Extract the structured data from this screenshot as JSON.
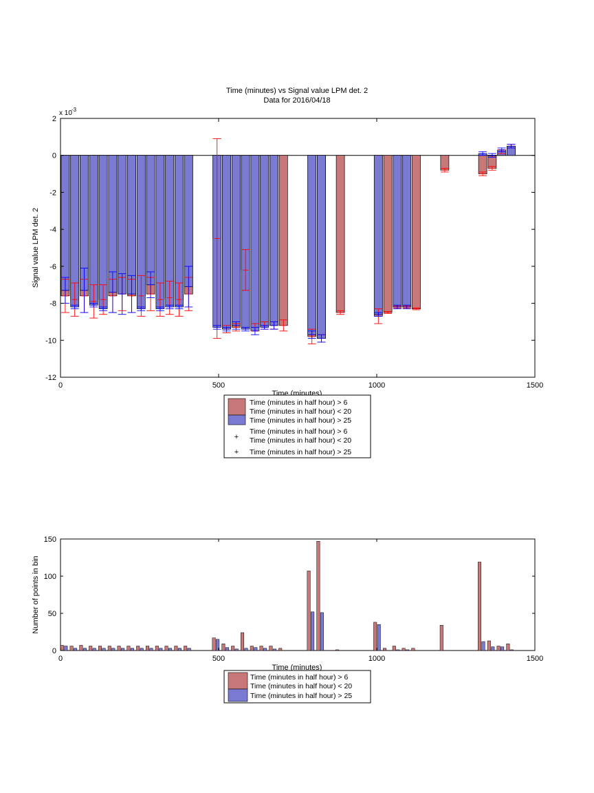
{
  "chart_data": [
    {
      "type": "bar",
      "title": "Time (minutes) vs Signal value LPM det. 2",
      "subtitle": "Data for 2016/04/18",
      "xlabel": "Time (minutes)",
      "ylabel": "Signal value LPM det. 2",
      "y_exponent_label": "x 10",
      "y_exponent": "-3",
      "xlim": [
        0,
        1500
      ],
      "ylim": [
        -12,
        2
      ],
      "xticks": [
        0,
        500,
        1000,
        1500
      ],
      "yticks": [
        -12,
        -10,
        -8,
        -6,
        -4,
        -2,
        0,
        2
      ],
      "legend_placement": "below",
      "legend": [
        "Time (minutes in half hour) > 6",
        "Time (minutes in half hour) < 20",
        "Time (minutes in half hour) > 25",
        "Time (minutes in half hour) > 6",
        "Time (minutes in half hour) < 20",
        "Time (minutes in half hour) > 25"
      ],
      "colors": {
        "red_bar": "#c87878",
        "blue_bar": "#7a7ad2",
        "red_err": "#ff0000",
        "blue_err": "#0000ff"
      },
      "series": [
        {
          "name": "Time (minutes in half hour) > 6 / Time (minutes in half hour) < 20",
          "x": [
            15,
            45,
            75,
            105,
            135,
            165,
            195,
            225,
            255,
            285,
            315,
            345,
            375,
            405,
            495,
            525,
            555,
            585,
            615,
            645,
            675,
            705,
            795,
            825,
            885,
            1005,
            1035,
            1065,
            1095,
            1125,
            1215,
            1335,
            1365,
            1395,
            1425
          ],
          "values": [
            -7.6,
            -7.8,
            -7.6,
            -7.9,
            -7.8,
            -7.6,
            -7.5,
            -7.6,
            -7.6,
            -7.5,
            -7.8,
            -7.7,
            -7.8,
            -7.5,
            -4.5,
            -9.4,
            -9.3,
            -6.2,
            -9.3,
            -9.2,
            -9.2,
            -9.2,
            -9.8,
            -9.9,
            -8.5,
            -8.7,
            -8.5,
            -8.2,
            -8.2,
            -8.3,
            -0.8,
            -1.0,
            -0.7,
            0.2,
            0.5
          ],
          "err": [
            0.9,
            0.9,
            0.9,
            0.9,
            0.8,
            0.9,
            0.9,
            0.9,
            1.1,
            0.9,
            0.9,
            0.9,
            0.9,
            0.9,
            5.4,
            0.2,
            0.2,
            1.1,
            0.2,
            0.2,
            0.2,
            0.3,
            0.4,
            0.2,
            0.1,
            0.4,
            0.05,
            0.05,
            0.05,
            0.05,
            0.1,
            0.1,
            0.1,
            0.1,
            0.1
          ]
        },
        {
          "name": "Time (minutes in half hour) > 25",
          "x": [
            15,
            45,
            75,
            105,
            135,
            165,
            195,
            225,
            255,
            285,
            315,
            345,
            375,
            405,
            495,
            525,
            555,
            585,
            615,
            645,
            675,
            795,
            825,
            1005,
            1065,
            1095,
            1335,
            1365,
            1395,
            1425
          ],
          "values": [
            -7.3,
            -8.2,
            -7.3,
            -8.1,
            -8.3,
            -7.4,
            -7.5,
            -7.5,
            -8.3,
            -7.0,
            -8.3,
            -8.2,
            -8.2,
            -7.1,
            -9.3,
            -9.4,
            -9.2,
            -9.4,
            -9.5,
            -9.3,
            -9.2,
            -9.7,
            -9.9,
            -8.6,
            -8.2,
            -8.2,
            0.1,
            0.0,
            0.3,
            0.5
          ],
          "err": [
            0.7,
            0.1,
            1.2,
            0.1,
            0.1,
            1.1,
            1.1,
            1.0,
            0.1,
            0.7,
            0.1,
            0.1,
            0.1,
            1.1,
            0.1,
            0.1,
            0.2,
            0.1,
            0.2,
            0.1,
            0.2,
            0.2,
            0.2,
            0.1,
            0.1,
            0.1,
            0.1,
            0.1,
            0.1,
            0.1
          ]
        }
      ]
    },
    {
      "type": "bar",
      "xlabel": "Time (minutes)",
      "ylabel": "Number of points in bin",
      "xlim": [
        0,
        1500
      ],
      "ylim": [
        0,
        150
      ],
      "xticks": [
        0,
        500,
        1000,
        1500
      ],
      "yticks": [
        0,
        50,
        100,
        150
      ],
      "legend_placement": "below",
      "legend": [
        "Time (minutes in half hour) > 6",
        "Time (minutes in half hour) < 20",
        "Time (minutes in half hour) > 25"
      ],
      "series": [
        {
          "name": "Time (minutes in half hour) > 6 / Time (minutes in half hour) < 20",
          "x": [
            5,
            35,
            65,
            95,
            125,
            155,
            185,
            215,
            245,
            275,
            305,
            335,
            365,
            395,
            485,
            515,
            545,
            575,
            605,
            635,
            665,
            695,
            785,
            815,
            875,
            995,
            1025,
            1055,
            1085,
            1115,
            1205,
            1325,
            1355,
            1385,
            1415
          ],
          "values": [
            7,
            6,
            7,
            6,
            6,
            6,
            6,
            6,
            6,
            6,
            6,
            6,
            6,
            6,
            17,
            9,
            6,
            24,
            6,
            6,
            6,
            3,
            107,
            147,
            1,
            38,
            3,
            6,
            3,
            3,
            34,
            119,
            13,
            6,
            9
          ]
        },
        {
          "name": "Time (minutes in half hour) > 25",
          "x": [
            17,
            47,
            77,
            107,
            137,
            167,
            197,
            227,
            257,
            287,
            317,
            347,
            377,
            407,
            497,
            527,
            557,
            587,
            617,
            647,
            677,
            797,
            827,
            1007,
            1067,
            1097,
            1337,
            1367,
            1397,
            1427
          ],
          "values": [
            6,
            3,
            3,
            3,
            3,
            3,
            3,
            3,
            3,
            3,
            3,
            3,
            3,
            3,
            15,
            4,
            2,
            3,
            4,
            3,
            2,
            52,
            51,
            35,
            1,
            1,
            12,
            5,
            5,
            1
          ]
        }
      ]
    }
  ]
}
